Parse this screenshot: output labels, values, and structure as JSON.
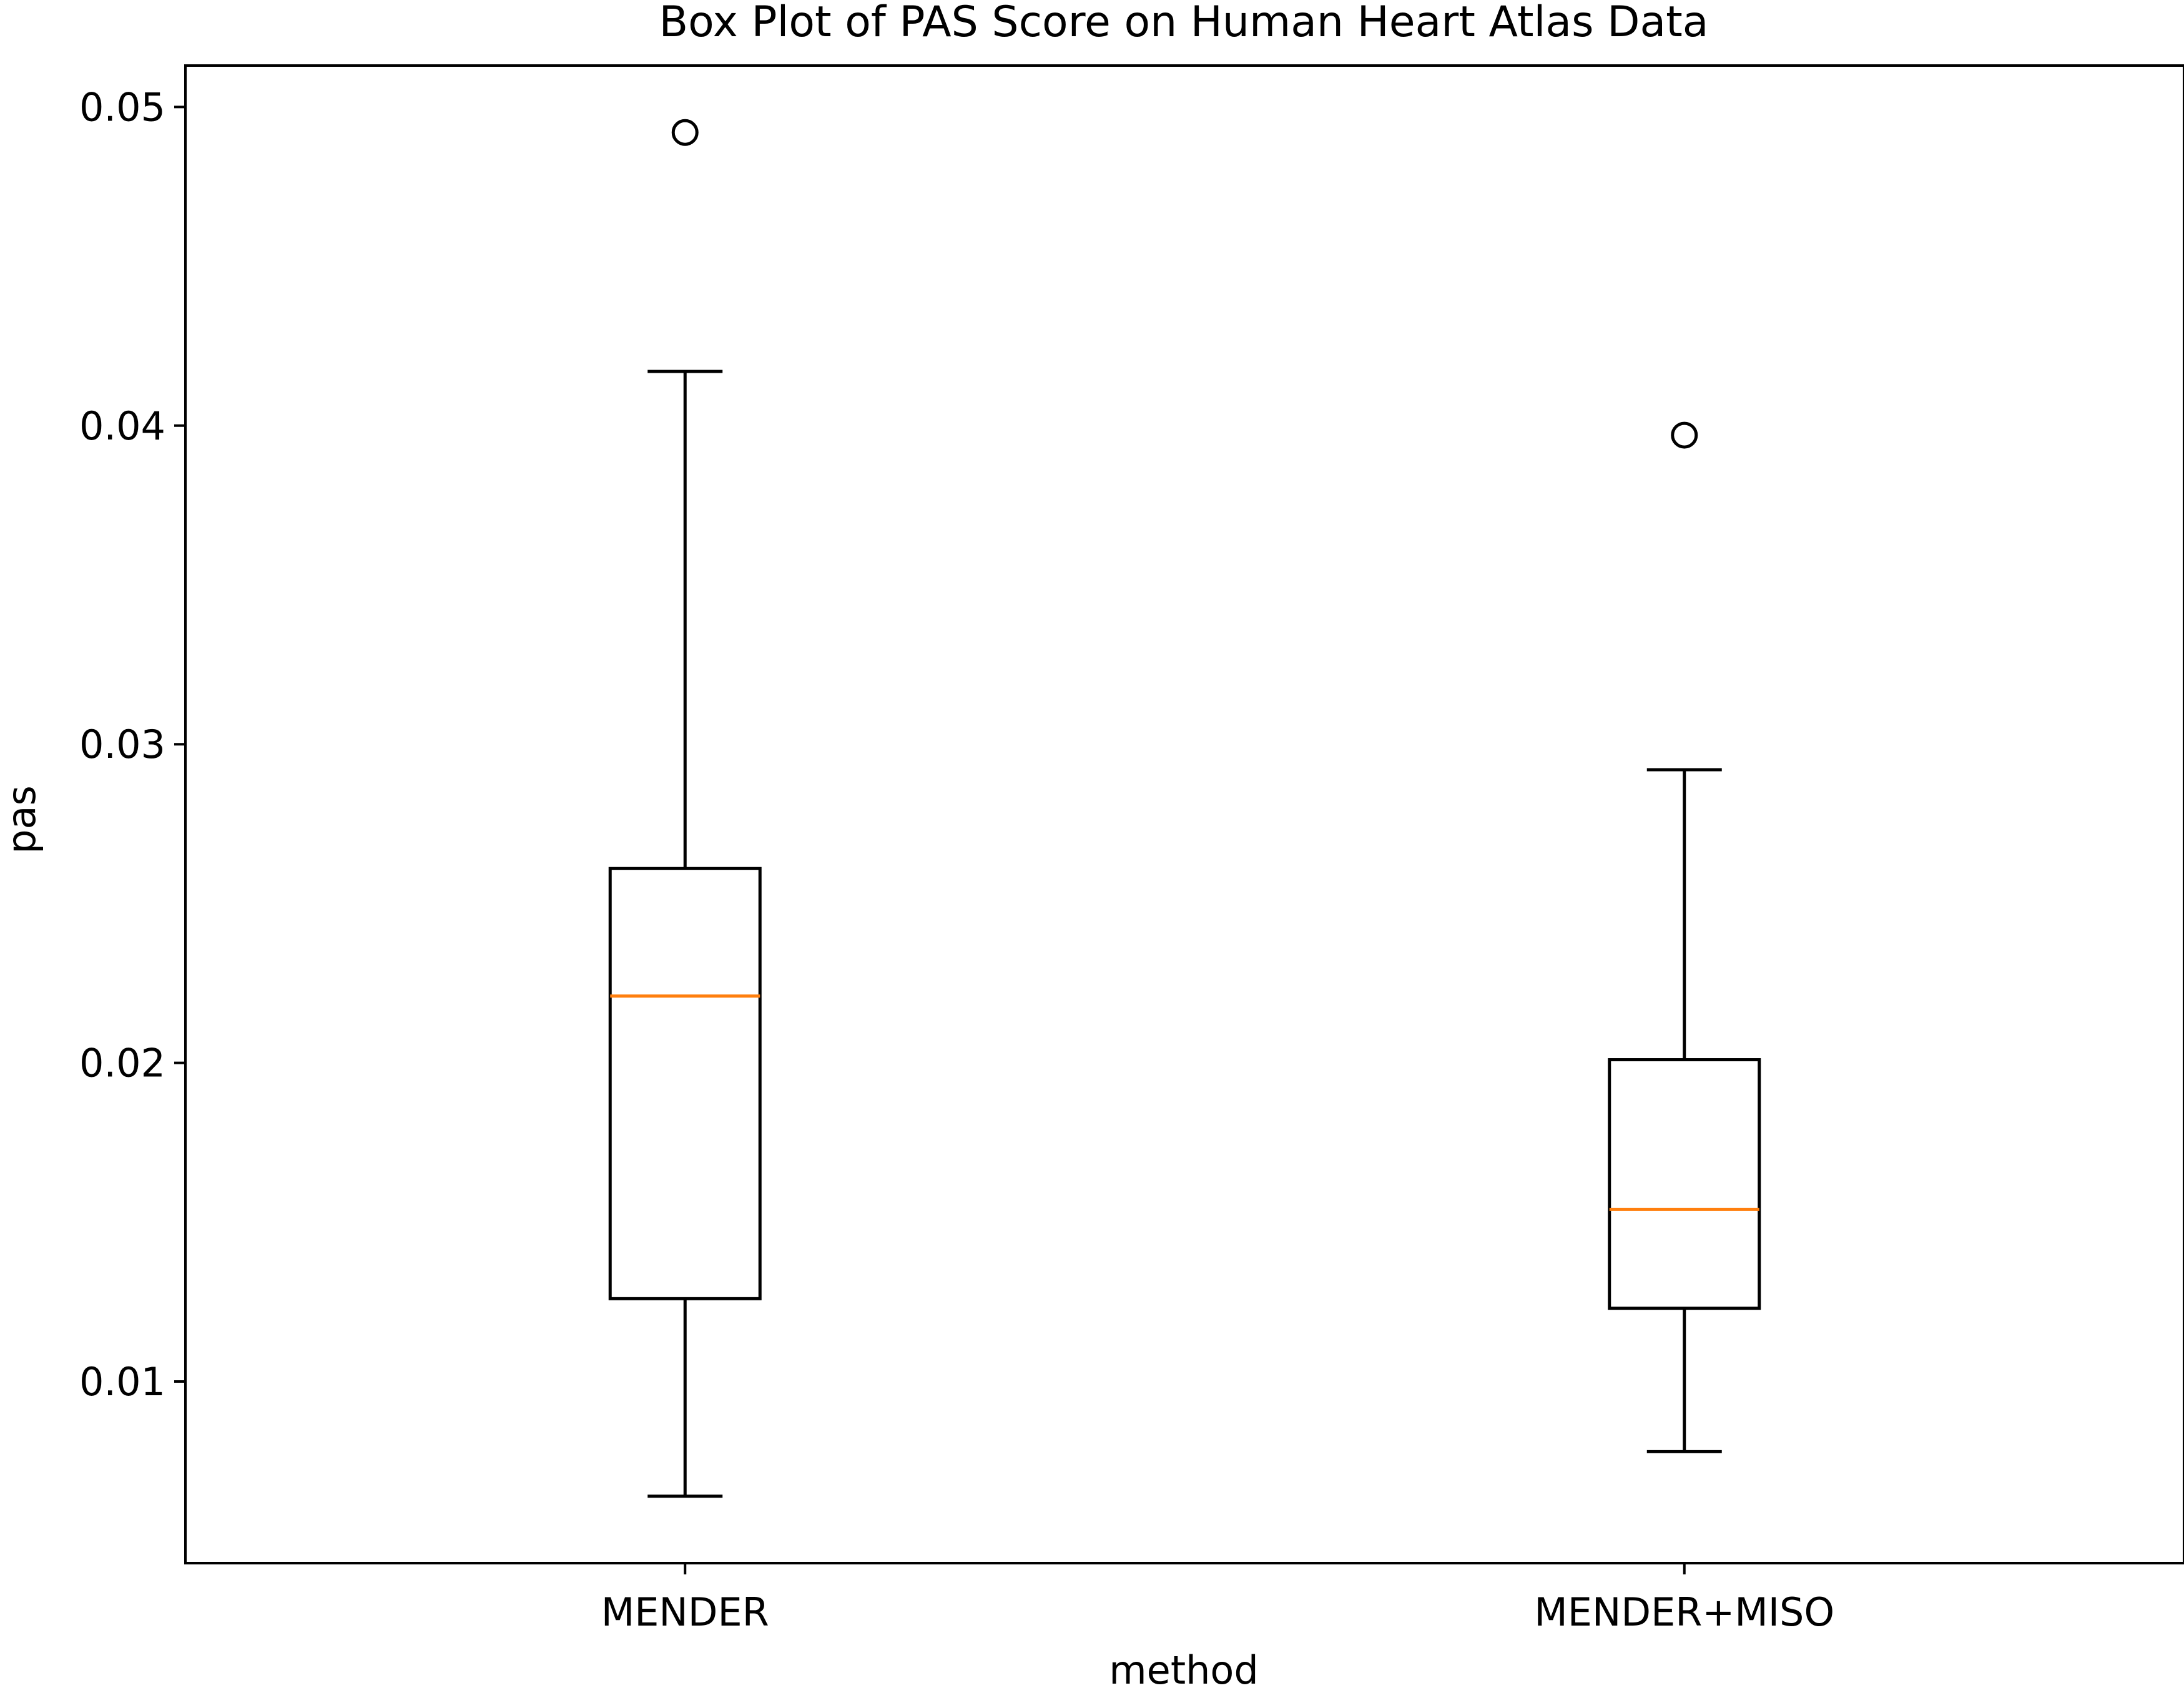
{
  "chart_data": {
    "type": "box",
    "title": "Box Plot of PAS Score on Human Heart Atlas Data",
    "xlabel": "method",
    "ylabel": "pas",
    "ylim": [
      0.0043,
      0.0513
    ],
    "yticks": [
      0.01,
      0.02,
      0.03,
      0.04,
      0.05
    ],
    "ytick_labels": [
      "0.01",
      "0.02",
      "0.03",
      "0.04",
      "0.05"
    ],
    "grid": false,
    "categories": [
      "MENDER",
      "MENDER+MISO"
    ],
    "boxes": [
      {
        "name": "MENDER",
        "whisker_low": 0.0064,
        "q1": 0.0126,
        "median": 0.0221,
        "q3": 0.0261,
        "whisker_high": 0.0417,
        "outliers": [
          0.0492
        ]
      },
      {
        "name": "MENDER+MISO",
        "whisker_low": 0.0078,
        "q1": 0.0123,
        "median": 0.0154,
        "q3": 0.0201,
        "whisker_high": 0.0292,
        "outliers": [
          0.0397
        ]
      }
    ],
    "colors": {
      "box": "#000000",
      "median": "#ff7f0e",
      "outlier": "#000000"
    }
  }
}
